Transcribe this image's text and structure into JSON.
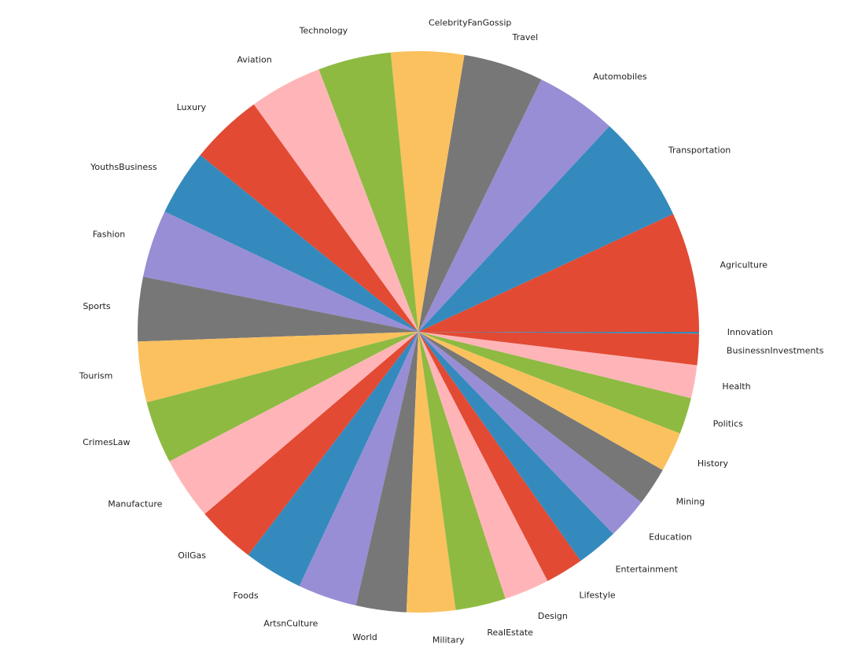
{
  "chart_data": {
    "type": "pie",
    "categories": [
      "Agriculture",
      "Transportation",
      "Automobiles",
      "Travel",
      "CelebrityFanGossip",
      "Technology",
      "Aviation",
      "Luxury",
      "YouthsBusiness",
      "Fashion",
      "Sports",
      "Tourism",
      "CrimesLaw",
      "Manufacture",
      "OilGas",
      "Foods",
      "ArtsnCulture",
      "World",
      "Military",
      "RealEstate",
      "Design",
      "Lifestyle",
      "Entertainment",
      "Education",
      "Mining",
      "History",
      "Politics",
      "Health",
      "BusinessnInvestments",
      "Innovation"
    ],
    "values": [
      6.9,
      6.2,
      4.7,
      4.6,
      4.2,
      4.2,
      4.2,
      4.2,
      3.8,
      3.9,
      3.7,
      3.5,
      3.6,
      3.6,
      3.4,
      3.4,
      3.4,
      2.9,
      2.8,
      2.9,
      2.6,
      2.2,
      2.4,
      2.4,
      2.2,
      2.3,
      2.1,
      1.9,
      1.8,
      0.1
    ],
    "colors": [
      "#E24A33",
      "#348ABD",
      "#988ED5",
      "#777777",
      "#FBC15E",
      "#8EBA42",
      "#FFB5B8"
    ]
  }
}
